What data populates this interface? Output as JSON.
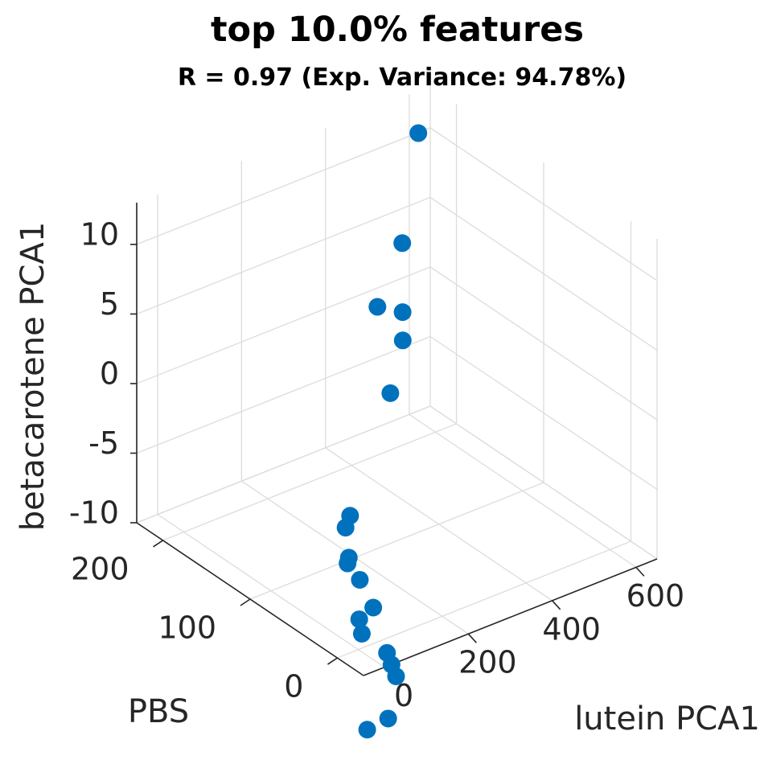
{
  "chart_data": {
    "type": "scatter3d",
    "title": "top 10.0% features",
    "subtitle": "R = 0.97 (Exp. Variance: 94.78%)",
    "xlabel": "lutein PCA1",
    "ylabel": "PBS",
    "zlabel": "betacarotene PCA1",
    "xlim": [
      -50,
      650
    ],
    "ylim": [
      -30,
      230
    ],
    "zlim": [
      -10,
      13
    ],
    "x_ticks": [
      0,
      200,
      400,
      600
    ],
    "y_ticks": [
      0,
      100,
      200
    ],
    "z_ticks": [
      -10,
      -5,
      0,
      5,
      10
    ],
    "grid": true,
    "marker_color": "#0072BD",
    "series": [
      {
        "points": [
          {
            "x": 580,
            "y": 210,
            "z": 11.3
          },
          {
            "x": 500,
            "y": 190,
            "z": 5.2
          },
          {
            "x": 480,
            "y": 180,
            "z": 0.9
          },
          {
            "x": 470,
            "y": 175,
            "z": -0.8
          },
          {
            "x": 430,
            "y": 170,
            "z": -3.9
          },
          {
            "x": 240,
            "y": 130,
            "z": -9.6
          },
          {
            "x": 230,
            "y": 120,
            "z": -8.2
          },
          {
            "x": 120,
            "y": 70,
            "z": -8.2
          },
          {
            "x": 175,
            "y": 95,
            "z": -9.5
          },
          {
            "x": 170,
            "y": 80,
            "z": -10.4
          },
          {
            "x": 150,
            "y": 55,
            "z": -11.1
          },
          {
            "x": 75,
            "y": 35,
            "z": -10.2
          },
          {
            "x": 50,
            "y": 20,
            "z": -10.3
          },
          {
            "x": 110,
            "y": 20,
            "z": -12.4
          },
          {
            "x": 100,
            "y": 10,
            "z": -12.7
          },
          {
            "x": 90,
            "y": 0,
            "z": -13.0
          },
          {
            "x": 40,
            "y": -15,
            "z": -14.8
          },
          {
            "x": -10,
            "y": -15,
            "z": -15.0
          },
          {
            "x": 420,
            "y": 180,
            "z": 2.0
          }
        ]
      }
    ]
  }
}
